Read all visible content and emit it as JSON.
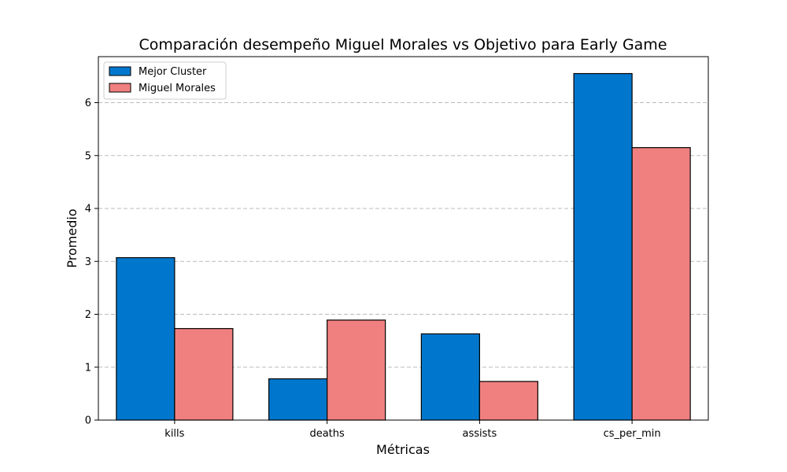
{
  "chart_data": {
    "type": "bar",
    "title": "Comparación desempeño Miguel Morales vs Objetivo para Early Game",
    "xlabel": "Métricas",
    "ylabel": "Promedio",
    "categories": [
      "kills",
      "deaths",
      "assists",
      "cs_per_min"
    ],
    "series": [
      {
        "name": "Mejor Cluster",
        "color": "#0077cc",
        "values": [
          3.07,
          0.78,
          1.63,
          6.55
        ]
      },
      {
        "name": "Miguel Morales",
        "color": "#f08080",
        "values": [
          1.73,
          1.89,
          0.73,
          5.15
        ]
      }
    ],
    "ylim": [
      0,
      6.87
    ],
    "yticks": [
      "0",
      "1",
      "2",
      "3",
      "4",
      "5",
      "6"
    ],
    "grid": "horizontal-dashed",
    "legend_position": "top-left"
  }
}
